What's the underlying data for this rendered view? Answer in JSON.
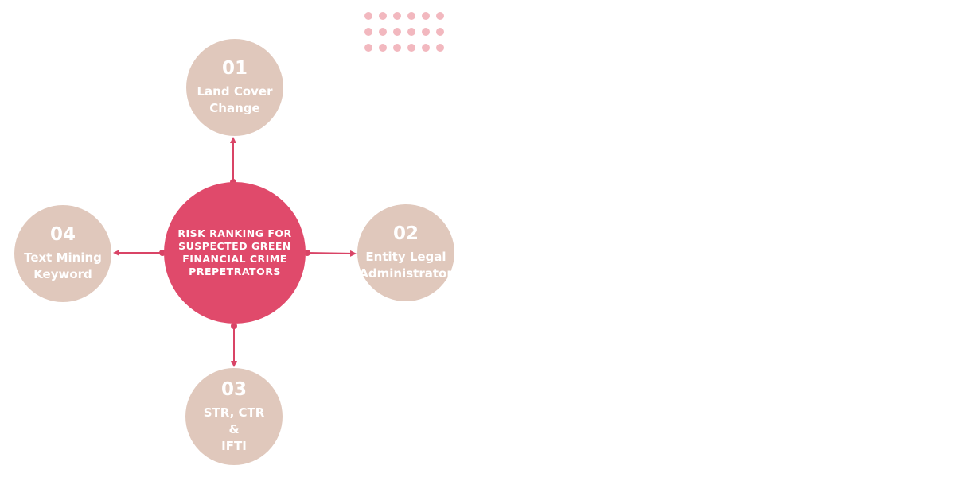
{
  "center": {
    "title": "RISK RANKING FOR\nSUSPECTED GREEN\nFINANCIAL CRIME\nPREPETRATORS"
  },
  "nodes": [
    {
      "number": "01",
      "label": "Land Cover\nChange"
    },
    {
      "number": "02",
      "label": "Entity Legal\nAdministrator"
    },
    {
      "number": "03",
      "label": "STR, CTR\n&\nIFTI"
    },
    {
      "number": "04",
      "label": "Text Mining\nKeyword"
    }
  ],
  "colors": {
    "center_fill": "#e04a6b",
    "node_fill": "#e0c8bc",
    "connector": "#d94466",
    "dots": "#f2b8bf",
    "text": "#ffffff"
  },
  "connectors": [
    {
      "from": "center",
      "to": "01",
      "arrow": "to"
    },
    {
      "from": "center",
      "to": "02",
      "arrow": "to"
    },
    {
      "from": "center",
      "to": "03",
      "arrow": "to"
    },
    {
      "from": "center",
      "to": "04",
      "arrow": "to"
    }
  ]
}
